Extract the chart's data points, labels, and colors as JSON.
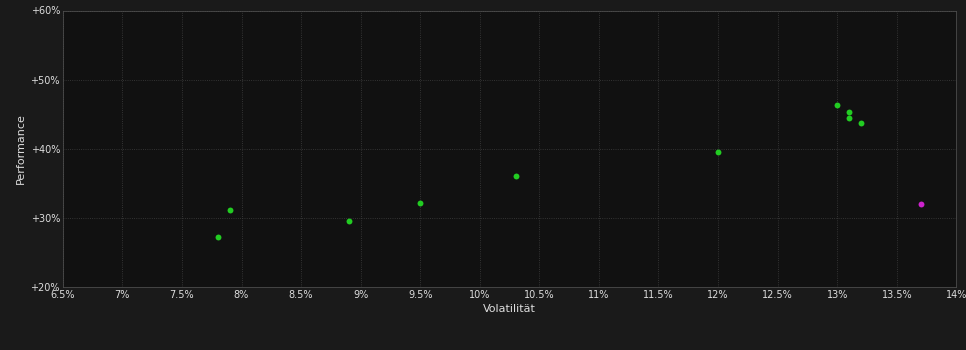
{
  "background_color": "#1a1a1a",
  "plot_bg_color": "#111111",
  "grid_color": "#444444",
  "text_color": "#dddddd",
  "xlabel": "Volatilität",
  "ylabel": "Performance",
  "xlim": [
    0.065,
    0.14
  ],
  "ylim": [
    0.2,
    0.6
  ],
  "xticks": [
    0.065,
    0.07,
    0.075,
    0.08,
    0.085,
    0.09,
    0.095,
    0.1,
    0.105,
    0.11,
    0.115,
    0.12,
    0.125,
    0.13,
    0.135,
    0.14
  ],
  "yticks": [
    0.2,
    0.3,
    0.4,
    0.5,
    0.6
  ],
  "ytick_labels": [
    "+20%",
    "+30%",
    "+40%",
    "+50%",
    "+60%"
  ],
  "xtick_labels": [
    "6.5%",
    "7%",
    "7.5%",
    "8%",
    "8.5%",
    "9%",
    "9.5%",
    "10%",
    "10.5%",
    "11%",
    "11.5%",
    "12%",
    "12.5%",
    "13%",
    "13.5%",
    "14%"
  ],
  "green_points": [
    [
      0.079,
      0.312
    ],
    [
      0.078,
      0.272
    ],
    [
      0.089,
      0.295
    ],
    [
      0.095,
      0.322
    ],
    [
      0.103,
      0.36
    ],
    [
      0.12,
      0.395
    ],
    [
      0.13,
      0.463
    ],
    [
      0.131,
      0.453
    ],
    [
      0.131,
      0.445
    ],
    [
      0.132,
      0.437
    ]
  ],
  "magenta_points": [
    [
      0.137,
      0.32
    ]
  ],
  "green_color": "#22cc22",
  "magenta_color": "#cc22cc",
  "marker_size": 18
}
